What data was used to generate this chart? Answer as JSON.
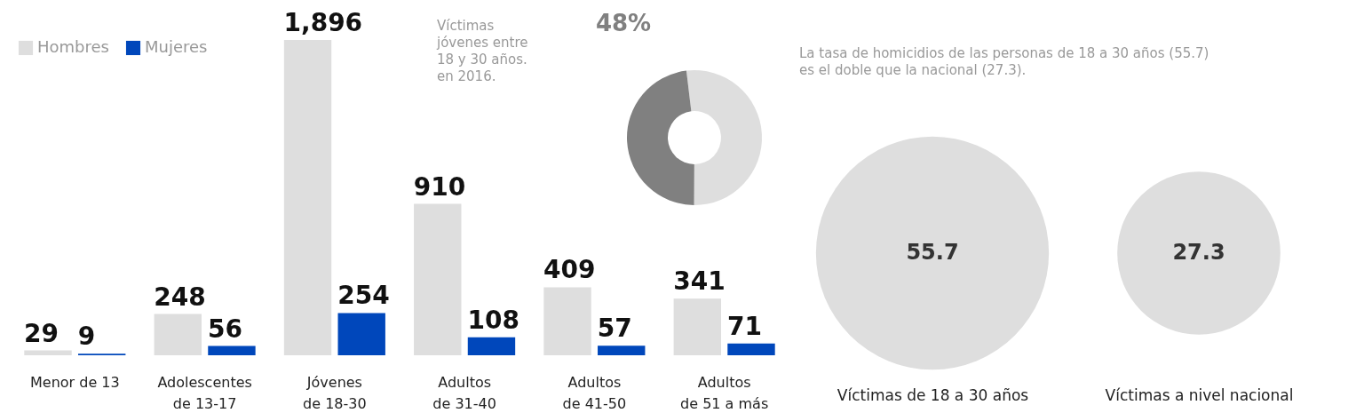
{
  "chart_data": [
    {
      "type": "bar",
      "categories": [
        "Menor de 13",
        "Adolescentes de 13-17",
        "Jóvenes de 18-30",
        "Adultos de 31-40",
        "Adultos de 41-50",
        "Adultos de 51 a más"
      ],
      "series": [
        {
          "name": "Hombres",
          "color": "#dedede",
          "values": [
            29,
            248,
            1896,
            910,
            409,
            341
          ],
          "value_labels": [
            "29",
            "248",
            "1,896",
            "910",
            "409",
            "341"
          ]
        },
        {
          "name": "Mujeres",
          "color": "#0047bb",
          "values": [
            9,
            56,
            254,
            108,
            57,
            71
          ],
          "value_labels": [
            "9",
            "56",
            "254",
            "108",
            "57",
            "71"
          ]
        }
      ],
      "legend": "top left"
    },
    {
      "type": "donut",
      "categories": [
        null,
        null
      ],
      "values": [
        52,
        48
      ],
      "colors": [
        "#dedede",
        "#808080"
      ],
      "value_labels": [
        null,
        "48%"
      ],
      "annotations": [
        "Víctimas jóvenes entre 18 y 30 años. en 2016."
      ]
    },
    {
      "type": "other",
      "title": "La tasa de homicidios de las personas de 18 a 30 años (55.7) es el doble que la nacional (27.3).",
      "categories": [
        "Víctimas de 18 a 30 años",
        "Víctimas a nivel nacional"
      ],
      "values": [
        55.7,
        27.3
      ],
      "colors": [
        "#dedede",
        "#dedede"
      ],
      "data_labels": true
    }
  ]
}
